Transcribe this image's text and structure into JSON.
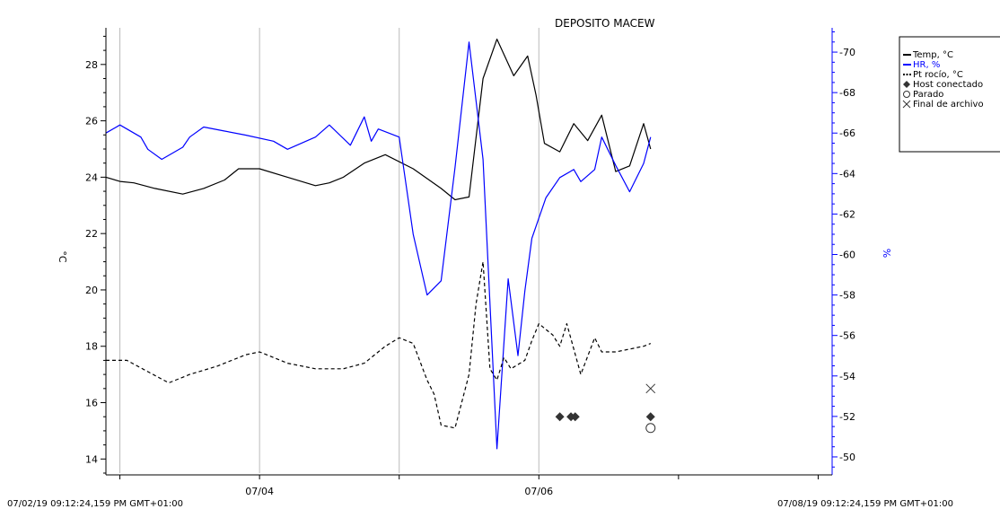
{
  "chart_data": {
    "type": "line",
    "title": "DEPOSITO MACEW",
    "colors": {
      "temp": "#000000",
      "rh": "#0000ff",
      "dew": "#000000",
      "grid": "#bbbbbb",
      "marker": "#333333"
    },
    "x_axis": {
      "unit": "days",
      "range": [
        0,
        5.2
      ],
      "gridlines": [
        0.1,
        1.1,
        2.1,
        3.1
      ],
      "minor_ticks": [
        0.1,
        1.1,
        2.1,
        3.1,
        4.1,
        5.1
      ],
      "labeled_ticks": [
        {
          "x": 1.1,
          "label": "07/04"
        },
        {
          "x": 3.1,
          "label": "07/06"
        }
      ],
      "start_label": "07/02/19 09:12:24,159 PM GMT+01:00",
      "end_label": "07/08/19 09:12:24,159 PM GMT+01:00"
    },
    "y_left": {
      "label": "°C",
      "range": [
        13.5,
        29.3
      ],
      "ticks": [
        14,
        16,
        18,
        20,
        22,
        24,
        26,
        28
      ]
    },
    "y_right": {
      "label": "%",
      "range": [
        49.2,
        71.2
      ],
      "ticks": [
        50,
        52,
        54,
        56,
        58,
        60,
        62,
        64,
        66,
        68,
        70
      ]
    },
    "legend": {
      "position": "top-right",
      "entries": [
        {
          "label": "Temp, °C",
          "style": "solid",
          "color": "#000000"
        },
        {
          "label": "HR, %",
          "style": "solid",
          "color": "#0000ff"
        },
        {
          "label": "Pt rocío, °C",
          "style": "dotted",
          "color": "#000000"
        },
        {
          "label": "Host conectado",
          "style": "diamond",
          "color": "#333333"
        },
        {
          "label": "Parado",
          "style": "circle",
          "color": "#333333"
        },
        {
          "label": "Final de archivo",
          "style": "x",
          "color": "#333333"
        }
      ]
    },
    "series": [
      {
        "name": "Temp, °C",
        "axis": "left",
        "color": "#000000",
        "style": "solid",
        "x": [
          0,
          0.1,
          0.2,
          0.35,
          0.55,
          0.7,
          0.85,
          0.95,
          1.0,
          1.1,
          1.3,
          1.5,
          1.6,
          1.7,
          1.85,
          2.0,
          2.2,
          2.4,
          2.5,
          2.6,
          2.7,
          2.8,
          2.92,
          3.02,
          3.08,
          3.14,
          3.25,
          3.35,
          3.45,
          3.55,
          3.65,
          3.75,
          3.85,
          3.9
        ],
        "y": [
          24.0,
          23.85,
          23.8,
          23.6,
          23.4,
          23.6,
          23.9,
          24.3,
          24.3,
          24.3,
          24.0,
          23.7,
          23.8,
          24.0,
          24.5,
          24.8,
          24.3,
          23.6,
          23.2,
          23.3,
          27.5,
          28.9,
          27.6,
          28.3,
          26.9,
          25.2,
          24.9,
          25.9,
          25.3,
          26.2,
          24.2,
          24.4,
          25.9,
          25.0
        ]
      },
      {
        "name": "HR, %",
        "axis": "right",
        "color": "#0000ff",
        "style": "solid",
        "x": [
          0,
          0.1,
          0.25,
          0.3,
          0.4,
          0.55,
          0.6,
          0.7,
          0.85,
          1.0,
          1.2,
          1.3,
          1.5,
          1.6,
          1.75,
          1.85,
          1.9,
          1.95,
          2.1,
          2.2,
          2.3,
          2.4,
          2.5,
          2.6,
          2.7,
          2.8,
          2.88,
          2.95,
          3.0,
          3.05,
          3.15,
          3.25,
          3.35,
          3.4,
          3.5,
          3.55,
          3.65,
          3.75,
          3.85,
          3.9
        ],
        "y": [
          66,
          66.4,
          65.8,
          65.2,
          64.7,
          65.3,
          65.8,
          66.3,
          66.1,
          65.9,
          65.6,
          65.2,
          65.8,
          66.4,
          65.4,
          66.8,
          65.6,
          66.2,
          65.8,
          61.0,
          58.0,
          58.7,
          64.3,
          70.5,
          64.7,
          50.4,
          58.8,
          55.0,
          58.2,
          60.8,
          62.8,
          63.8,
          64.2,
          63.6,
          64.2,
          65.8,
          64.4,
          63.1,
          64.5,
          65.8
        ]
      },
      {
        "name": "Pt rocío, °C",
        "axis": "left",
        "color": "#000000",
        "style": "dotted",
        "x": [
          0,
          0.15,
          0.3,
          0.45,
          0.6,
          0.8,
          1.0,
          1.1,
          1.3,
          1.5,
          1.7,
          1.85,
          2.0,
          2.1,
          2.2,
          2.3,
          2.35,
          2.4,
          2.5,
          2.6,
          2.65,
          2.7,
          2.75,
          2.8,
          2.85,
          2.9,
          3.0,
          3.05,
          3.1,
          3.2,
          3.25,
          3.3,
          3.4,
          3.5,
          3.55,
          3.65,
          3.75,
          3.85,
          3.9
        ],
        "y": [
          17.5,
          17.5,
          17.1,
          16.7,
          17.0,
          17.3,
          17.7,
          17.8,
          17.4,
          17.2,
          17.2,
          17.4,
          18.0,
          18.3,
          18.1,
          16.8,
          16.3,
          15.2,
          15.1,
          17.0,
          19.5,
          21.0,
          17.2,
          16.8,
          17.6,
          17.2,
          17.5,
          18.2,
          18.8,
          18.4,
          18.0,
          18.8,
          17.0,
          18.3,
          17.8,
          17.8,
          17.9,
          18.0,
          18.1
        ]
      }
    ],
    "events": [
      {
        "type": "Host conectado",
        "x": [
          3.25,
          3.33,
          3.36,
          3.9
        ],
        "y": [
          15.5,
          15.5,
          15.5,
          15.5
        ]
      },
      {
        "type": "Parado",
        "x": [
          3.9
        ],
        "y": [
          15.1
        ]
      },
      {
        "type": "Final de archivo",
        "x": [
          3.9
        ],
        "y": [
          16.5
        ]
      }
    ]
  }
}
